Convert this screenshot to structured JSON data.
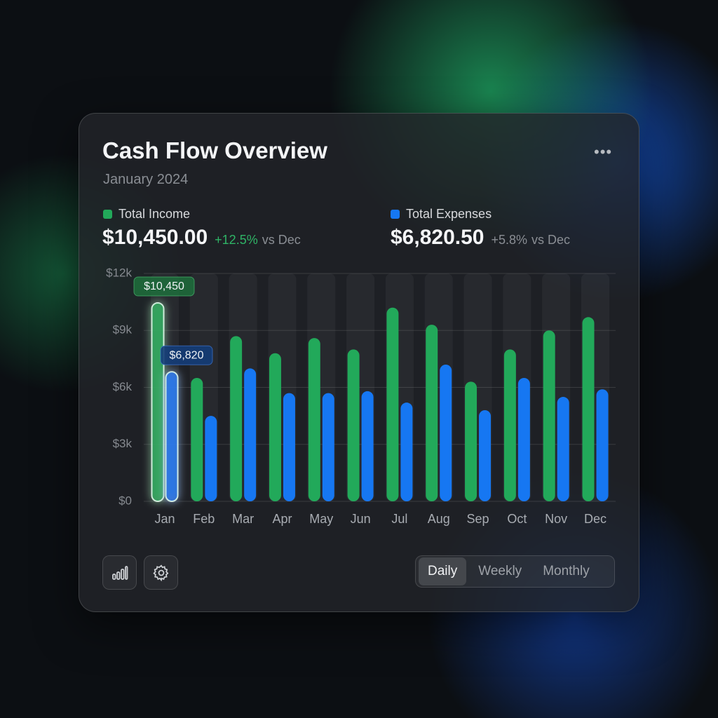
{
  "header": {
    "title": "Cash Flow Overview",
    "subtitle": "January 2024"
  },
  "summary": [
    {
      "amount": "$10,450.00",
      "change": "+12.5%",
      "comparison": "vs Dec"
    },
    {
      "amount": "$6,820.50",
      "change": "+5.8%",
      "comparison": "vs Dec"
    }
  ],
  "chart_data": {
    "type": "bar",
    "categories": [
      "Jan",
      "Feb",
      "Mar",
      "Apr",
      "May",
      "Jun",
      "Jul",
      "Aug",
      "Sep",
      "Oct",
      "Nov",
      "Dec"
    ],
    "series": [
      {
        "name": "Total Income",
        "color": "#22a95a",
        "values": [
          10450,
          6500,
          8700,
          7800,
          8600,
          8000,
          10200,
          9300,
          6300,
          8000,
          9000,
          9700
        ],
        "value_labels": [
          "$10,450",
          null,
          null,
          null,
          null,
          null,
          null,
          null,
          null,
          null,
          null,
          null
        ]
      },
      {
        "name": "Total Expenses",
        "color": "#1677f2",
        "values": [
          6820,
          4500,
          7000,
          5700,
          5700,
          5800,
          5200,
          7200,
          4800,
          6500,
          5500,
          5900
        ],
        "value_labels": [
          "$6,820",
          null,
          null,
          null,
          null,
          null,
          null,
          null,
          null,
          null,
          null,
          null
        ]
      }
    ],
    "ylim": [
      0,
      12000
    ],
    "yticks": [
      {
        "value": 0,
        "label": "$0"
      },
      {
        "value": 3000,
        "label": "$3k"
      },
      {
        "value": 6000,
        "label": "$6k"
      },
      {
        "value": 9000,
        "label": "$9k"
      },
      {
        "value": 12000,
        "label": "$12k"
      }
    ],
    "grid": true
  },
  "tabs": {
    "options": [
      "Daily",
      "Weekly",
      "Monthly"
    ],
    "active": 0
  }
}
